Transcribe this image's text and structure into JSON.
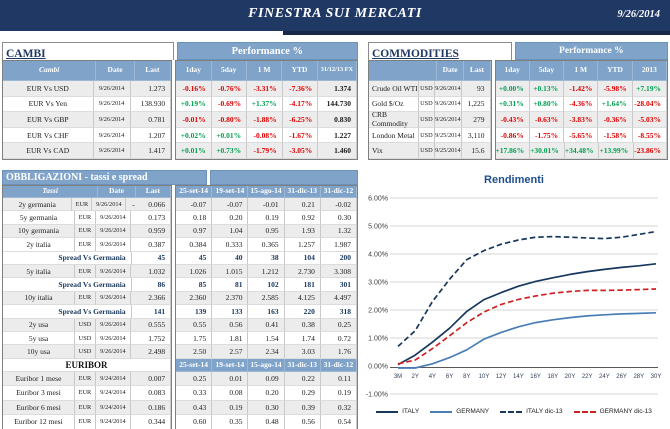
{
  "header": {
    "title": "FINESTRA SUI MERCATI",
    "date": "9/26/2014"
  },
  "colors": {
    "header_bg": "#1F3864",
    "table_header_bg": "#7FA3C9",
    "positive": "#00A050",
    "negative": "#E00000",
    "spread_text": "#17375D",
    "row_shade": "#ECECEC",
    "chart_title": "#1F4E8C"
  },
  "cambi": {
    "title": "CAMBI",
    "perf_header": "Performance  %",
    "columns": [
      "Cambi",
      "Date",
      "Last",
      "1day",
      "5day",
      "1 M",
      "YTD",
      "31/12/13 FX"
    ],
    "rows": [
      {
        "name": "EUR Vs USD",
        "date": "9/26/2014",
        "last": "1.273",
        "perf": [
          "-0.16%",
          "-0.76%",
          "-3.31%",
          "-7.36%"
        ],
        "fx": "1.374"
      },
      {
        "name": "EUR Vs Yen",
        "date": "9/26/2014",
        "last": "138.930",
        "perf": [
          "+0.19%",
          "-0.69%",
          "+1.37%",
          "-4.17%"
        ],
        "fx": "144.730"
      },
      {
        "name": "EUR Vs GBP",
        "date": "9/26/2014",
        "last": "0.781",
        "perf": [
          "-0.01%",
          "-0.80%",
          "-1.88%",
          "-6.25%"
        ],
        "fx": "0.830"
      },
      {
        "name": "EUR Vs CHF",
        "date": "9/26/2014",
        "last": "1.207",
        "perf": [
          "+0.02%",
          "+0.01%",
          "-0.08%",
          "-1.67%"
        ],
        "fx": "1.227"
      },
      {
        "name": "EUR Vs CAD",
        "date": "9/26/2014",
        "last": "1.417",
        "perf": [
          "+0.01%",
          "+0.73%",
          "-1.79%",
          "-3.05%"
        ],
        "fx": "1.460"
      }
    ]
  },
  "commodities": {
    "title": "COMMODITIES",
    "perf_header": "Performance  %",
    "columns": [
      "Date",
      "Last",
      "1day",
      "5day",
      "1 M",
      "YTD",
      "2013"
    ],
    "rows": [
      {
        "name": "Crude Oil WTI",
        "ccy": "USD",
        "date": "9/26/2014",
        "last": "93",
        "perf": [
          "+0.00%",
          "+0.13%",
          "-1.42%",
          "-5.98%",
          "+7.19%"
        ]
      },
      {
        "name": "Gold $/Oz",
        "ccy": "USD",
        "date": "9/26/2014",
        "last": "1,225",
        "perf": [
          "+0.31%",
          "+0.80%",
          "-4.36%",
          "+1.64%",
          "-28.04%"
        ]
      },
      {
        "name": "CRB Commodity",
        "ccy": "USD",
        "date": "9/26/2014",
        "last": "279",
        "perf": [
          "-0.43%",
          "-0.63%",
          "-3.83%",
          "-0.36%",
          "-5.03%"
        ]
      },
      {
        "name": "London Metal",
        "ccy": "USD",
        "date": "9/25/2014",
        "last": "3,110",
        "perf": [
          "-0.86%",
          "-1.75%",
          "-5.65%",
          "-1.58%",
          "-8.55%"
        ]
      },
      {
        "name": "Vix",
        "ccy": "USD",
        "date": "9/25/2014",
        "last": "15.6",
        "perf": [
          "+17.86%",
          "+30.01%",
          "+34.48%",
          "+13.99%",
          "-23.86%"
        ]
      }
    ]
  },
  "obbligazioni": {
    "title": "OBBLIGAZIONI - tassi e spread",
    "columns": [
      "Tassi",
      "Date",
      "Last",
      "25-set-14",
      "19-set-14",
      "15-ago-14",
      "31-dic-13",
      "31-dic-12"
    ],
    "rows": [
      {
        "type": "data",
        "name": "2y germania",
        "ccy": "EUR",
        "date": "9/26/2014",
        "last": "- 0.066",
        "vals": [
          "-0.07",
          "-0.07",
          "-0.01",
          "0.21",
          "-0.02"
        ],
        "shade": true
      },
      {
        "type": "data",
        "name": "5y germania",
        "ccy": "EUR",
        "date": "9/26/2014",
        "last": "0.173",
        "vals": [
          "0.18",
          "0.20",
          "0.19",
          "0.92",
          "0.30"
        ],
        "shade": false
      },
      {
        "type": "data",
        "name": "10y germania",
        "ccy": "EUR",
        "date": "9/26/2014",
        "last": "0.959",
        "vals": [
          "0.97",
          "1.04",
          "0.95",
          "1.93",
          "1.32"
        ],
        "shade": true
      },
      {
        "type": "data",
        "name": "2y italia",
        "ccy": "EUR",
        "date": "9/26/2014",
        "last": "0.387",
        "vals": [
          "0.384",
          "0.333",
          "0.365",
          "1.257",
          "1.987"
        ],
        "shade": false
      },
      {
        "type": "spread",
        "label": "Spread Vs Germania",
        "last": "45",
        "vals": [
          "45",
          "40",
          "38",
          "104",
          "200"
        ]
      },
      {
        "type": "data",
        "name": "5y italia",
        "ccy": "EUR",
        "date": "9/26/2014",
        "last": "1.032",
        "vals": [
          "1.026",
          "1.015",
          "1.212",
          "2.730",
          "3.308"
        ],
        "shade": true
      },
      {
        "type": "spread",
        "label": "Spread Vs Germania",
        "last": "86",
        "vals": [
          "85",
          "81",
          "102",
          "181",
          "301"
        ]
      },
      {
        "type": "data",
        "name": "10y italia",
        "ccy": "EUR",
        "date": "9/26/2014",
        "last": "2.366",
        "vals": [
          "2.360",
          "2.370",
          "2.585",
          "4.125",
          "4.497"
        ],
        "shade": true
      },
      {
        "type": "spread",
        "label": "Spread Vs Germania",
        "last": "141",
        "vals": [
          "139",
          "133",
          "163",
          "220",
          "318"
        ]
      },
      {
        "type": "data",
        "name": "2y usa",
        "ccy": "USD",
        "date": "9/26/2014",
        "last": "0.555",
        "vals": [
          "0.55",
          "0.56",
          "0.41",
          "0.38",
          "0.25"
        ],
        "shade": true
      },
      {
        "type": "data",
        "name": "5y usa",
        "ccy": "USD",
        "date": "9/26/2014",
        "last": "1.752",
        "vals": [
          "1.75",
          "1.81",
          "1.54",
          "1.74",
          "0.72"
        ],
        "shade": false
      },
      {
        "type": "data",
        "name": "10y usa",
        "ccy": "USD",
        "date": "9/26/2014",
        "last": "2.498",
        "vals": [
          "2.50",
          "2.57",
          "2.34",
          "3.03",
          "1.76"
        ],
        "shade": true
      }
    ]
  },
  "euribor": {
    "title": "EURIBOR",
    "columns": [
      "25-set-14",
      "19-set-14",
      "15-ago-14",
      "31-dic-13",
      "31-dic-12"
    ],
    "rows": [
      {
        "name": "Euribor 1 mese",
        "ccy": "EUR",
        "date": "9/24/2014",
        "last": "0.007",
        "vals": [
          "0.25",
          "0.01",
          "0.09",
          "0.22",
          "0.11"
        ],
        "shade": true
      },
      {
        "name": "Euribor 3 mesi",
        "ccy": "EUR",
        "date": "9/24/2014",
        "last": "0.083",
        "vals": [
          "0.33",
          "0.08",
          "0.20",
          "0.29",
          "0.19"
        ],
        "shade": false
      },
      {
        "name": "Euribor 6 mesi",
        "ccy": "EUR",
        "date": "9/24/2014",
        "last": "0.186",
        "vals": [
          "0.43",
          "0.19",
          "0.30",
          "0.39",
          "0.32"
        ],
        "shade": true
      },
      {
        "name": "Euribor 12 mesi",
        "ccy": "EUR",
        "date": "9/24/2014",
        "last": "0.344",
        "vals": [
          "0.60",
          "0.35",
          "0.48",
          "0.56",
          "0.54"
        ],
        "shade": false
      }
    ]
  },
  "chart_data": {
    "type": "line",
    "title": "Rendimenti",
    "x": [
      "3M",
      "2Y",
      "4Y",
      "6Y",
      "8Y",
      "10Y",
      "12Y",
      "14Y",
      "16Y",
      "18Y",
      "20Y",
      "22Y",
      "24Y",
      "26Y",
      "28Y",
      "30Y"
    ],
    "ylim": [
      -1,
      6
    ],
    "grid": true,
    "legend_position": "bottom",
    "yticks": [
      {
        "label": "6.00%",
        "v": 6
      },
      {
        "label": "5.00%",
        "v": 5
      },
      {
        "label": "4.00%",
        "v": 4
      },
      {
        "label": "3.00%",
        "v": 3
      },
      {
        "label": "2.00%",
        "v": 2
      },
      {
        "label": "1.00%",
        "v": 1
      },
      {
        "label": "0.00%",
        "v": 0
      },
      {
        "label": "-1.00%",
        "v": -1
      }
    ],
    "series": [
      {
        "name": "ITALY",
        "style": "solid",
        "color": "#17375D",
        "values": [
          0.05,
          0.39,
          0.85,
          1.35,
          1.95,
          2.37,
          2.62,
          2.85,
          3.02,
          3.15,
          3.27,
          3.37,
          3.45,
          3.52,
          3.58,
          3.65
        ]
      },
      {
        "name": "GERMANY",
        "style": "solid",
        "color": "#4A7EB5",
        "values": [
          -0.07,
          -0.07,
          0.08,
          0.3,
          0.58,
          0.96,
          1.2,
          1.4,
          1.55,
          1.65,
          1.73,
          1.79,
          1.83,
          1.86,
          1.88,
          1.9
        ]
      },
      {
        "name": "ITALY dic-13",
        "style": "dashed",
        "color": "#17375D",
        "values": [
          0.7,
          1.26,
          2.3,
          3.1,
          3.8,
          4.12,
          4.35,
          4.5,
          4.6,
          4.62,
          4.6,
          4.57,
          4.55,
          4.6,
          4.7,
          4.8
        ]
      },
      {
        "name": "GERMANY dic-13",
        "style": "dashed",
        "color": "#CC2222",
        "values": [
          0.08,
          0.21,
          0.62,
          1.08,
          1.55,
          1.93,
          2.2,
          2.38,
          2.5,
          2.6,
          2.66,
          2.7,
          2.7,
          2.71,
          2.73,
          2.75
        ]
      }
    ]
  }
}
